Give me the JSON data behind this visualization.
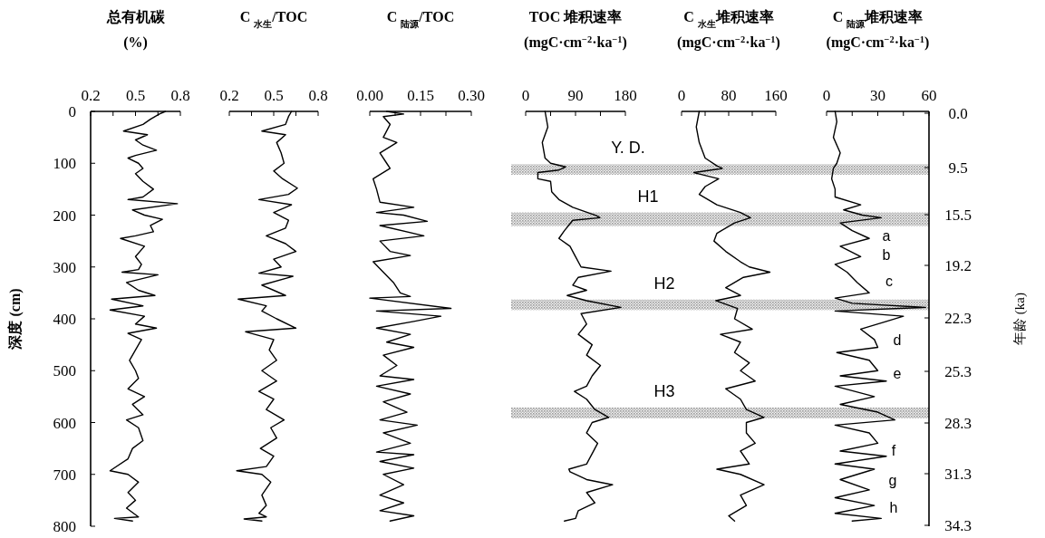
{
  "chart_data": [
    {
      "type": "line",
      "title": "总有机碳",
      "xlabel": "(%)",
      "ylabel": "深度 (cm)",
      "xlim": [
        0.2,
        0.8
      ],
      "xticks": [
        0.2,
        {
          "value": 0.35,
          "label": null
        },
        0.5,
        {
          "value": 0.65,
          "label": null
        },
        0.8
      ],
      "ylim": [
        800,
        0
      ],
      "yticks": [
        0,
        100,
        200,
        300,
        400,
        500,
        600,
        700,
        800
      ],
      "series": [
        {
          "color": "#000000",
          "values": [
            0,
            5,
            15,
            25,
            38,
            45,
            55,
            65,
            75,
            85,
            90,
            100,
            110,
            120,
            135,
            150,
            165,
            170,
            178,
            190,
            200,
            208,
            220,
            232,
            240,
            245,
            260,
            280,
            295,
            305,
            310,
            315,
            330,
            345,
            355,
            362,
            375,
            383,
            395,
            410,
            418,
            428,
            440,
            460,
            480,
            500,
            515,
            535,
            550,
            565,
            585,
            595,
            610,
            635,
            650,
            670,
            693,
            700,
            715,
            735,
            750,
            765,
            782,
            785,
            790
          ],
          "x": [
            0.7,
            0.66,
            0.6,
            0.55,
            0.42,
            0.58,
            0.5,
            0.55,
            0.64,
            0.5,
            0.45,
            0.52,
            0.55,
            0.5,
            0.55,
            0.62,
            0.55,
            0.45,
            0.78,
            0.48,
            0.56,
            0.68,
            0.6,
            0.62,
            0.5,
            0.4,
            0.56,
            0.5,
            0.54,
            0.52,
            0.41,
            0.65,
            0.44,
            0.52,
            0.63,
            0.34,
            0.55,
            0.33,
            0.56,
            0.5,
            0.64,
            0.45,
            0.54,
            0.5,
            0.46,
            0.5,
            0.52,
            0.45,
            0.56,
            0.48,
            0.55,
            0.44,
            0.52,
            0.55,
            0.48,
            0.45,
            0.33,
            0.45,
            0.52,
            0.45,
            0.5,
            0.44,
            0.52,
            0.36,
            0.48
          ]
        }
      ]
    },
    {
      "type": "line",
      "title": "C $_{水生}$/TOC",
      "xlim": [
        0.2,
        0.8
      ],
      "xticks": [
        0.2,
        {
          "value": 0.35,
          "label": null
        },
        0.5,
        {
          "value": 0.65,
          "label": null
        },
        0.8
      ],
      "ylim": [
        800,
        0
      ],
      "tick_labels": "x",
      "series": [
        {
          "color": "#000000",
          "values": [
            0,
            10,
            25,
            38,
            45,
            60,
            80,
            100,
            115,
            130,
            148,
            160,
            170,
            180,
            195,
            210,
            225,
            240,
            255,
            270,
            285,
            300,
            312,
            318,
            335,
            345,
            355,
            362,
            375,
            385,
            400,
            418,
            425,
            440,
            460,
            480,
            500,
            520,
            540,
            555,
            575,
            595,
            610,
            630,
            650,
            665,
            685,
            693,
            700,
            715,
            740,
            760,
            775,
            782,
            786,
            790
          ],
          "x": [
            0.62,
            0.6,
            0.58,
            0.42,
            0.58,
            0.52,
            0.55,
            0.57,
            0.5,
            0.56,
            0.66,
            0.6,
            0.4,
            0.62,
            0.5,
            0.6,
            0.58,
            0.45,
            0.58,
            0.65,
            0.5,
            0.55,
            0.4,
            0.63,
            0.42,
            0.5,
            0.58,
            0.26,
            0.45,
            0.42,
            0.52,
            0.65,
            0.31,
            0.5,
            0.47,
            0.52,
            0.42,
            0.52,
            0.4,
            0.5,
            0.45,
            0.57,
            0.48,
            0.52,
            0.41,
            0.5,
            0.45,
            0.25,
            0.42,
            0.48,
            0.42,
            0.45,
            0.4,
            0.45,
            0.3,
            0.42
          ]
        }
      ]
    },
    {
      "type": "line",
      "title": "C $_{陆源}$/TOC",
      "xlim": [
        0,
        0.3
      ],
      "xticks": [
        {
          "value": 0,
          "label": "0.00"
        },
        {
          "value": 0.075,
          "label": null
        },
        0.15,
        {
          "value": 0.225,
          "label": null
        },
        {
          "value": 0.3,
          "label": "0.30"
        }
      ],
      "ylim": [
        800,
        0
      ],
      "tick_labels": "x",
      "series": [
        {
          "color": "#000000",
          "values": [
            0,
            5,
            10,
            25,
            50,
            60,
            80,
            100,
            110,
            130,
            150,
            175,
            185,
            195,
            200,
            212,
            220,
            240,
            250,
            270,
            278,
            290,
            310,
            330,
            350,
            357,
            360,
            380,
            385,
            395,
            405,
            418,
            430,
            445,
            455,
            470,
            490,
            510,
            517,
            530,
            545,
            560,
            580,
            595,
            605,
            620,
            640,
            657,
            662,
            675,
            688,
            700,
            720,
            740,
            755,
            770,
            780,
            790
          ],
          "x": [
            0.05,
            0.1,
            0.04,
            0.06,
            0.04,
            0.08,
            0.03,
            0.05,
            0.06,
            0.01,
            0.02,
            0.03,
            0.13,
            0.02,
            0.1,
            0.17,
            0.03,
            0.16,
            0.03,
            0.06,
            0.12,
            0.01,
            0.04,
            0.07,
            0.09,
            0.12,
            0.0,
            0.24,
            0.02,
            0.21,
            0.13,
            0.02,
            0.12,
            0.05,
            0.13,
            0.04,
            0.08,
            0.03,
            0.13,
            0.02,
            0.12,
            0.04,
            0.11,
            0.03,
            0.14,
            0.04,
            0.12,
            0.02,
            0.13,
            0.03,
            0.13,
            0.04,
            0.1,
            0.03,
            0.1,
            0.03,
            0.13,
            0.06
          ]
        }
      ]
    },
    {
      "type": "line",
      "title": "TOC 堆积速率",
      "xlabel": "(mgC·cm$^{−2}$·ka$^{−1}$)",
      "xlim": [
        0,
        180
      ],
      "xticks": [
        0,
        {
          "value": 45,
          "label": null
        },
        90,
        {
          "value": 135,
          "label": null
        },
        180
      ],
      "ylim": [
        800,
        0
      ],
      "tick_labels": "x",
      "annotations": [
        "Y. D.",
        "H1",
        "H2",
        "H3"
      ],
      "bands": [
        {
          "axis": "y",
          "from": 102,
          "to": 122,
          "color": "#9a9a9a"
        },
        {
          "axis": "y",
          "from": 195,
          "to": 221,
          "color": "#9a9a9a"
        },
        {
          "axis": "y",
          "from": 363,
          "to": 383,
          "color": "#9a9a9a"
        },
        {
          "axis": "y",
          "from": 571,
          "to": 592,
          "color": "#9a9a9a"
        }
      ],
      "series": [
        {
          "color": "#000000",
          "values": [
            0,
            30,
            60,
            90,
            100,
            107,
            113,
            118,
            130,
            135,
            155,
            170,
            185,
            201,
            205,
            210,
            230,
            245,
            260,
            280,
            300,
            308,
            320,
            335,
            345,
            355,
            365,
            378,
            390,
            410,
            430,
            450,
            470,
            490,
            510,
            530,
            540,
            555,
            575,
            590,
            600,
            620,
            640,
            660,
            680,
            690,
            695,
            710,
            720,
            735,
            755,
            770,
            785,
            790
          ],
          "x": [
            35,
            40,
            30,
            35,
            45,
            72,
            60,
            22,
            22,
            45,
            47,
            60,
            85,
            128,
            134,
            85,
            70,
            60,
            80,
            90,
            100,
            154,
            95,
            85,
            110,
            75,
            110,
            172,
            100,
            110,
            95,
            120,
            110,
            135,
            120,
            110,
            88,
            110,
            125,
            150,
            120,
            110,
            130,
            120,
            110,
            78,
            80,
            110,
            157,
            110,
            125,
            95,
            90,
            70
          ]
        }
      ]
    },
    {
      "type": "line",
      "title": "C $_{水生}$堆积速率",
      "xlabel": "(mgC·cm$^{−2}$·ka$^{−1}$)",
      "xlim": [
        0,
        160
      ],
      "xticks": [
        0,
        {
          "value": 40,
          "label": null
        },
        80,
        {
          "value": 120,
          "label": null
        },
        160
      ],
      "ylim": [
        800,
        0
      ],
      "tick_labels": "x",
      "bands": [
        {
          "axis": "y",
          "from": 102,
          "to": 122,
          "color": "#9a9a9a"
        },
        {
          "axis": "y",
          "from": 195,
          "to": 221,
          "color": "#9a9a9a"
        },
        {
          "axis": "y",
          "from": 363,
          "to": 383,
          "color": "#9a9a9a"
        },
        {
          "axis": "y",
          "from": 571,
          "to": 592,
          "color": "#9a9a9a"
        }
      ],
      "series": [
        {
          "color": "#000000",
          "values": [
            0,
            30,
            60,
            90,
            105,
            110,
            118,
            130,
            145,
            160,
            180,
            195,
            205,
            215,
            235,
            250,
            270,
            290,
            300,
            310,
            320,
            340,
            355,
            365,
            380,
            400,
            420,
            430,
            445,
            465,
            485,
            500,
            520,
            535,
            555,
            575,
            590,
            600,
            620,
            640,
            655,
            680,
            690,
            700,
            720,
            740,
            760,
            780,
            790
          ],
          "x": [
            30,
            25,
            30,
            40,
            60,
            69,
            21,
            63,
            40,
            30,
            60,
            100,
            117,
            90,
            60,
            55,
            75,
            100,
            115,
            150,
            105,
            75,
            100,
            58,
            95,
            90,
            120,
            66,
            100,
            90,
            115,
            100,
            125,
            75,
            100,
            110,
            140,
            110,
            110,
            125,
            100,
            115,
            60,
            100,
            140,
            100,
            110,
            80,
            90
          ]
        }
      ]
    },
    {
      "type": "line",
      "title": "C $_{陆源}$堆积速率",
      "xlabel": "(mgC·cm$^{−2}$·ka$^{−1}$)",
      "y2label": "年龄 (ka)",
      "xlim": [
        0,
        60
      ],
      "xticks": [
        0,
        {
          "value": 15,
          "label": null
        },
        30,
        {
          "value": 45,
          "label": null
        },
        60
      ],
      "ylim": [
        800,
        0
      ],
      "tick_labels": "x",
      "annotations": [
        "0.0",
        "9.5",
        "15.5",
        "19.2",
        "22.3",
        "25.3",
        "28.3",
        "31.3",
        "34.3",
        "a",
        "b",
        "c",
        "d",
        "e",
        "f",
        "g",
        "h"
      ],
      "bands": [
        {
          "axis": "y",
          "from": 102,
          "to": 122,
          "color": "#9a9a9a"
        },
        {
          "axis": "y",
          "from": 195,
          "to": 221,
          "color": "#9a9a9a"
        },
        {
          "axis": "y",
          "from": 363,
          "to": 383,
          "color": "#9a9a9a"
        },
        {
          "axis": "y",
          "from": 571,
          "to": 592,
          "color": "#9a9a9a"
        }
      ],
      "series": [
        {
          "color": "#000000",
          "values": [
            0,
            20,
            50,
            80,
            100,
            110,
            130,
            150,
            165,
            180,
            190,
            200,
            205,
            215,
            230,
            245,
            260,
            280,
            295,
            310,
            330,
            350,
            360,
            370,
            378,
            385,
            395,
            405,
            420,
            440,
            455,
            465,
            480,
            500,
            510,
            520,
            530,
            550,
            565,
            580,
            595,
            605,
            620,
            640,
            655,
            665,
            680,
            690,
            710,
            730,
            745,
            760,
            775,
            785,
            790
          ],
          "x": [
            5,
            6,
            4,
            8,
            6,
            4,
            3,
            5,
            5,
            20,
            10,
            21,
            32,
            8,
            15,
            25,
            8,
            20,
            5,
            12,
            18,
            25,
            5,
            15,
            58,
            5,
            45,
            35,
            20,
            28,
            30,
            6,
            25,
            30,
            8,
            35,
            5,
            28,
            8,
            30,
            40,
            5,
            25,
            30,
            8,
            35,
            5,
            28,
            8,
            25,
            5,
            28,
            5,
            32,
            15
          ]
        }
      ]
    }
  ]
}
